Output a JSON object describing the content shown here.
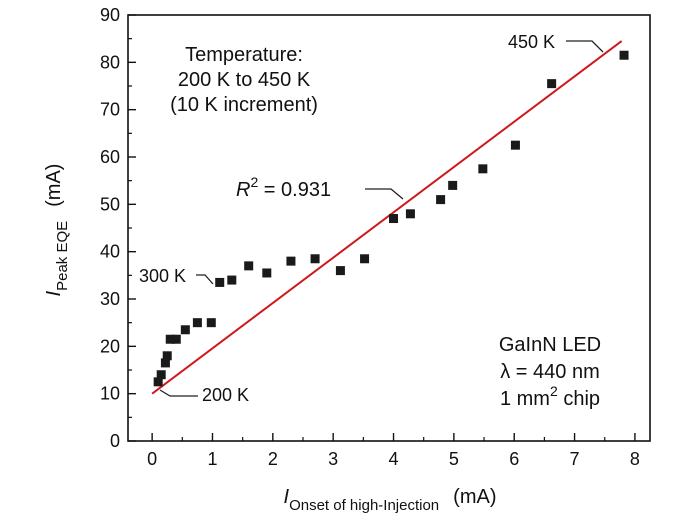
{
  "chart_data": {
    "type": "scatter",
    "xlabel": {
      "main": "I",
      "sub": "Onset of high-Injection",
      "unit": "(mA)"
    },
    "ylabel": {
      "main": "I",
      "sub": "Peak EQE",
      "unit": "(mA)"
    },
    "xlim": [
      -0.4,
      8.25
    ],
    "ylim": [
      0,
      90
    ],
    "xticks": [
      0,
      1,
      2,
      3,
      4,
      5,
      6,
      7,
      8
    ],
    "yticks": [
      0,
      10,
      20,
      30,
      40,
      50,
      60,
      70,
      80,
      90
    ],
    "grid": false,
    "points": [
      {
        "x": 0.1,
        "y": 12.5
      },
      {
        "x": 0.15,
        "y": 14.0
      },
      {
        "x": 0.22,
        "y": 16.5
      },
      {
        "x": 0.25,
        "y": 18.0
      },
      {
        "x": 0.3,
        "y": 21.5
      },
      {
        "x": 0.4,
        "y": 21.5
      },
      {
        "x": 0.55,
        "y": 23.5
      },
      {
        "x": 0.75,
        "y": 25.0
      },
      {
        "x": 0.98,
        "y": 25.0
      },
      {
        "x": 1.12,
        "y": 33.5
      },
      {
        "x": 1.32,
        "y": 34.0
      },
      {
        "x": 1.6,
        "y": 37.0
      },
      {
        "x": 1.9,
        "y": 35.5
      },
      {
        "x": 2.3,
        "y": 38.0
      },
      {
        "x": 2.7,
        "y": 38.5
      },
      {
        "x": 3.12,
        "y": 36.0
      },
      {
        "x": 3.52,
        "y": 38.5
      },
      {
        "x": 4.0,
        "y": 47.0
      },
      {
        "x": 4.28,
        "y": 48.0
      },
      {
        "x": 4.78,
        "y": 51.0
      },
      {
        "x": 4.98,
        "y": 54.0
      },
      {
        "x": 5.48,
        "y": 57.5
      },
      {
        "x": 6.02,
        "y": 62.5
      },
      {
        "x": 6.62,
        "y": 75.5
      },
      {
        "x": 7.82,
        "y": 81.5
      }
    ],
    "fit_line": {
      "x": [
        0.0,
        7.78
      ],
      "y": [
        10.0,
        84.5
      ],
      "color": "#d0181c"
    },
    "marker_color": "#1a1a1a",
    "annotations": {
      "temperature": [
        "Temperature:",
        "200 K to 450 K",
        "(10 K increment)"
      ],
      "r2_label": "R",
      "r2_sup": "2",
      "r2_value": " = 0.931",
      "label_450k": "450 K",
      "label_300k": "300 K",
      "label_200k": "200 K",
      "device_line1": "GaInN LED",
      "device_line2": "λ = 440 nm",
      "device_line3_a": "1 mm",
      "device_line3_sup": "2",
      "device_line3_b": " chip"
    }
  }
}
